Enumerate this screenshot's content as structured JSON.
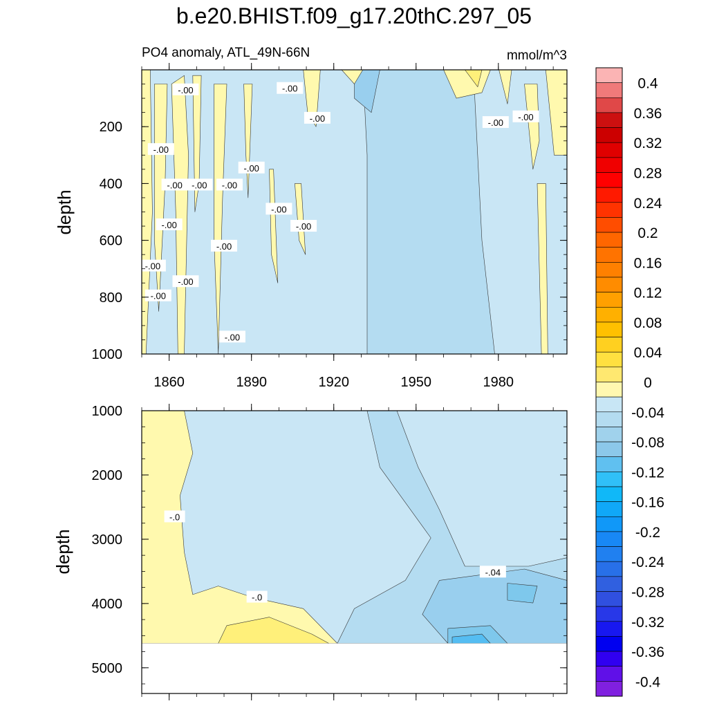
{
  "chart_data": {
    "type": "heatmap",
    "title": "b.e20.BHIST.f09_g17.20thC.297_05",
    "left_subtitle": "PO4 anomaly, ATL_49N-66N",
    "right_subtitle": "mmol/m^3",
    "xlabel": "",
    "ylabel": "depth",
    "xlim": [
      1850,
      2005
    ],
    "x_ticks": [
      1860,
      1890,
      1920,
      1950,
      1980
    ],
    "x_tick_labels": [
      "1860",
      "1890",
      "1920",
      "1950",
      "1980"
    ],
    "panels": [
      {
        "name": "upper",
        "ylabel": "depth",
        "ylim": [
          0,
          1000
        ],
        "y_ticks": [
          200,
          400,
          600,
          800,
          1000
        ],
        "y_tick_labels": [
          "200",
          "400",
          "600",
          "800",
          "1000"
        ],
        "contour_labels": [
          {
            "text": "-.00",
            "x": 1866,
            "y": 70
          },
          {
            "text": "-.00",
            "x": 1904,
            "y": 65
          },
          {
            "text": "-.00",
            "x": 1914,
            "y": 170
          },
          {
            "text": "-.00",
            "x": 1857,
            "y": 280
          },
          {
            "text": "-.00",
            "x": 1862,
            "y": 405
          },
          {
            "text": "-.00",
            "x": 1871,
            "y": 405
          },
          {
            "text": "-.00",
            "x": 1882,
            "y": 405
          },
          {
            "text": "-.00",
            "x": 1890,
            "y": 345
          },
          {
            "text": "-.00",
            "x": 1860,
            "y": 545
          },
          {
            "text": "-.00",
            "x": 1880,
            "y": 620
          },
          {
            "text": "-.00",
            "x": 1900,
            "y": 490
          },
          {
            "text": "-.00",
            "x": 1909,
            "y": 550
          },
          {
            "text": "-.00",
            "x": 1854,
            "y": 690
          },
          {
            "text": "-.00",
            "x": 1856,
            "y": 795
          },
          {
            "text": "-.00",
            "x": 1866,
            "y": 745
          },
          {
            "text": "-.00",
            "x": 1883,
            "y": 940
          },
          {
            "text": "-.00",
            "x": 1979,
            "y": 185
          },
          {
            "text": "-.00",
            "x": 1990,
            "y": 165
          }
        ]
      },
      {
        "name": "lower",
        "ylabel": "depth",
        "ylim": [
          1000,
          5400
        ],
        "y_ticks": [
          1000,
          2000,
          3000,
          4000,
          5000
        ],
        "y_tick_labels": [
          "1000",
          "2000",
          "3000",
          "4000",
          "5000"
        ],
        "data_bottom": 4620,
        "contour_labels": [
          {
            "text": "-.0",
            "x": 1862,
            "y": 2650
          },
          {
            "text": "-.0",
            "x": 1892,
            "y": 3900
          },
          {
            "text": "-.04",
            "x": 1978,
            "y": 3510
          }
        ]
      }
    ],
    "colorbar": {
      "levels": [
        -0.4,
        -0.38,
        -0.36,
        -0.34,
        -0.32,
        -0.3,
        -0.28,
        -0.26,
        -0.24,
        -0.22,
        -0.2,
        -0.18,
        -0.16,
        -0.14,
        -0.12,
        -0.1,
        -0.08,
        -0.06,
        -0.04,
        -0.02,
        0,
        0.02,
        0.04,
        0.06,
        0.08,
        0.1,
        0.12,
        0.14,
        0.16,
        0.18,
        0.2,
        0.22,
        0.24,
        0.26,
        0.28,
        0.3,
        0.32,
        0.34,
        0.36,
        0.38,
        0.4
      ],
      "labels": [
        "0.4",
        "0.36",
        "0.32",
        "0.28",
        "0.24",
        "0.2",
        "0.16",
        "0.12",
        "0.08",
        "0.04",
        "0",
        "-0.04",
        "-0.08",
        "-0.12",
        "-0.16",
        "-0.2",
        "-0.24",
        "-0.28",
        "-0.32",
        "-0.36",
        "-0.4"
      ],
      "colors_top_to_bottom": [
        "#fbb4b4",
        "#f07a7a",
        "#e04848",
        "#cc1010",
        "#cc0000",
        "#e00000",
        "#f00000",
        "#ff0000",
        "#ff1a00",
        "#ff3300",
        "#ff4d00",
        "#ff6600",
        "#ff7300",
        "#ff8000",
        "#ff8c00",
        "#ffa000",
        "#ffb000",
        "#ffc000",
        "#ffd020",
        "#ffe040",
        "#ffe870",
        "#fff8b0",
        "#c8e6f5",
        "#b4dcf0",
        "#a0d2ec",
        "#8cc8ea",
        "#60c0f0",
        "#30c0f8",
        "#10b8f8",
        "#10a8f8",
        "#1098f8",
        "#1888f5",
        "#2080f0",
        "#2870e8",
        "#3060e0",
        "#3050e0",
        "#2838e8",
        "#1818f0",
        "#0000f0",
        "#3000f0",
        "#6010e8",
        "#8020e0"
      ]
    },
    "palette": {
      "pos_fill": "#fff9ae",
      "pos_fill_strong": "#fff07a",
      "neg_fill": "#c9e6f5",
      "neg_fill_mid": "#b4dcf1",
      "neg_fill_strong": "#99cfee",
      "neg_fill_deep": "#7ec8ec",
      "neg_fill_deepest": "#55bdf2"
    }
  }
}
